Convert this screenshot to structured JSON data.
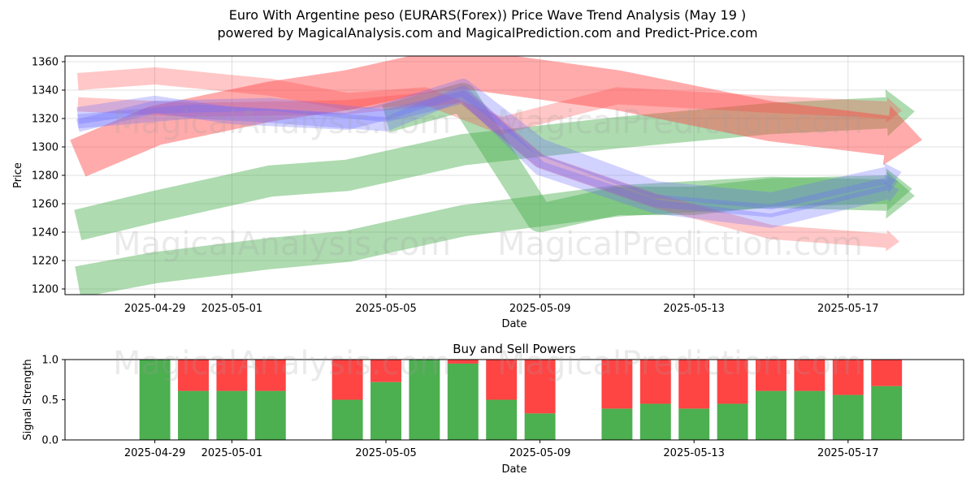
{
  "title": {
    "line1": "Euro With Argentine peso (EURARS(Forex)) Price Wave Trend Analysis (May 19 )",
    "line2": "powered by MagicalAnalysis.com and MagicalPrediction.com and Predict-Price.com"
  },
  "watermarks": [
    "MagicalAnalysis.com",
    "MagicalPrediction.com"
  ],
  "colors": {
    "red": "#ff4444",
    "green": "#4caf50",
    "blue": "#6b6bff",
    "grid": "#b0b0b0",
    "watermark": "#a0a0a0"
  },
  "chart_data": [
    {
      "type": "area",
      "title": "",
      "xlabel": "Date",
      "ylabel": "Price",
      "ylim": [
        1196,
        1364
      ],
      "xlim": [
        "2025-04-26T16:00",
        "2025-05-20T00:00"
      ],
      "y_ticks": [
        1200,
        1220,
        1240,
        1260,
        1280,
        1300,
        1320,
        1340,
        1360
      ],
      "x_ticks": [
        "2025-04-29",
        "2025-05-01",
        "2025-05-05",
        "2025-05-09",
        "2025-05-13",
        "2025-05-17"
      ],
      "grid": true,
      "series": [
        {
          "color": "green",
          "alpha": 0.45,
          "width_price": 22,
          "x": [
            "2025-04-27",
            "2025-04-29",
            "2025-05-02",
            "2025-05-04",
            "2025-05-07",
            "2025-05-11",
            "2025-05-15",
            "2025-05-18"
          ],
          "y": [
            1245,
            1258,
            1276,
            1280,
            1298,
            1310,
            1320,
            1324
          ]
        },
        {
          "color": "green",
          "alpha": 0.45,
          "width_price": 22,
          "x": [
            "2025-04-27",
            "2025-04-29",
            "2025-05-02",
            "2025-05-04",
            "2025-05-07",
            "2025-05-11",
            "2025-05-15",
            "2025-05-18"
          ],
          "y": [
            1205,
            1215,
            1225,
            1230,
            1248,
            1262,
            1268,
            1266
          ]
        },
        {
          "color": "green",
          "alpha": 0.45,
          "width_price": 20,
          "x": [
            "2025-05-05",
            "2025-05-07",
            "2025-05-09",
            "2025-05-11",
            "2025-05-13",
            "2025-05-15",
            "2025-05-18"
          ],
          "y": [
            1320,
            1335,
            1250,
            1262,
            1262,
            1268,
            1270
          ]
        },
        {
          "color": "red",
          "alpha": 0.45,
          "width_price": 28,
          "x": [
            "2025-04-27",
            "2025-04-29",
            "2025-05-02",
            "2025-05-04",
            "2025-05-06",
            "2025-05-07",
            "2025-05-11",
            "2025-05-15",
            "2025-05-18"
          ],
          "y": [
            1292,
            1315,
            1332,
            1340,
            1352,
            1355,
            1340,
            1318,
            1308
          ]
        },
        {
          "color": "red",
          "alpha": 0.3,
          "width_price": 12,
          "x": [
            "2025-04-27",
            "2025-04-29",
            "2025-05-02",
            "2025-05-04",
            "2025-05-06",
            "2025-05-08",
            "2025-05-11",
            "2025-05-15",
            "2025-05-18"
          ],
          "y": [
            1346,
            1350,
            1342,
            1332,
            1336,
            1315,
            1336,
            1330,
            1326
          ]
        },
        {
          "color": "red",
          "alpha": 0.3,
          "width_price": 10,
          "x": [
            "2025-04-27",
            "2025-04-30",
            "2025-05-04",
            "2025-05-07",
            "2025-05-09",
            "2025-05-12",
            "2025-05-15",
            "2025-05-18"
          ],
          "y": [
            1330,
            1326,
            1328,
            1336,
            1290,
            1262,
            1240,
            1234
          ]
        },
        {
          "color": "blue",
          "alpha": 0.3,
          "width_price": 12,
          "x": [
            "2025-04-27",
            "2025-04-29",
            "2025-05-01",
            "2025-05-04",
            "2025-05-05",
            "2025-05-07",
            "2025-05-09",
            "2025-05-12",
            "2025-05-15",
            "2025-05-18"
          ],
          "y": [
            1322,
            1330,
            1322,
            1318,
            1325,
            1342,
            1300,
            1270,
            1262,
            1280
          ]
        },
        {
          "color": "blue",
          "alpha": 0.3,
          "width_price": 10,
          "x": [
            "2025-04-27",
            "2025-04-30",
            "2025-05-02",
            "2025-05-05",
            "2025-05-07",
            "2025-05-09",
            "2025-05-12",
            "2025-05-15",
            "2025-05-18"
          ],
          "y": [
            1318,
            1325,
            1322,
            1316,
            1338,
            1285,
            1258,
            1248,
            1268
          ]
        },
        {
          "color": "blue",
          "alpha": 0.3,
          "width_price": 9,
          "x": [
            "2025-04-27",
            "2025-04-29",
            "2025-05-02",
            "2025-05-05",
            "2025-05-07",
            "2025-05-09",
            "2025-05-12",
            "2025-05-15",
            "2025-05-18"
          ],
          "y": [
            1315,
            1328,
            1330,
            1322,
            1335,
            1290,
            1262,
            1255,
            1274
          ]
        }
      ]
    },
    {
      "type": "bar",
      "title": "Buy and Sell Powers",
      "xlabel": "Date",
      "ylabel": "Signal Strength",
      "ylim": [
        0,
        1
      ],
      "y_ticks": [
        0.0,
        0.5,
        1.0
      ],
      "x_ticks": [
        "2025-04-29",
        "2025-05-01",
        "2025-05-05",
        "2025-05-09",
        "2025-05-13",
        "2025-05-17"
      ],
      "categories": [
        "2025-04-29",
        "2025-04-30",
        "2025-05-01",
        "2025-05-02",
        "2025-05-04",
        "2025-05-05",
        "2025-05-06",
        "2025-05-07",
        "2025-05-08",
        "2025-05-09",
        "2025-05-11",
        "2025-05-12",
        "2025-05-13",
        "2025-05-14",
        "2025-05-15",
        "2025-05-16",
        "2025-05-17",
        "2025-05-18"
      ],
      "series": [
        {
          "color": "green",
          "values": [
            1.0,
            0.61,
            0.61,
            0.61,
            0.5,
            0.72,
            1.0,
            0.95,
            0.5,
            0.33,
            0.39,
            0.45,
            0.39,
            0.45,
            0.61,
            0.61,
            0.56,
            0.67
          ]
        },
        {
          "color": "red",
          "values": [
            0.0,
            0.39,
            0.39,
            0.39,
            0.5,
            0.28,
            0.0,
            0.05,
            0.5,
            0.67,
            0.61,
            0.55,
            0.61,
            0.55,
            0.39,
            0.39,
            0.44,
            0.33
          ]
        }
      ]
    }
  ]
}
